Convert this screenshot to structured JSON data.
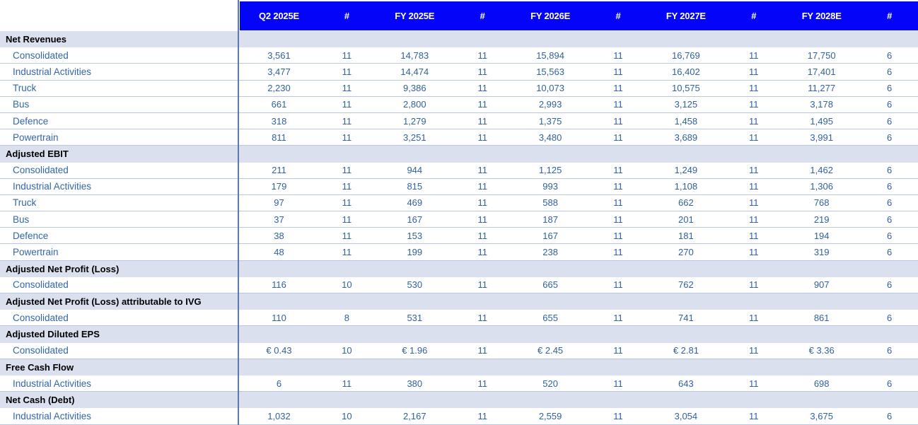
{
  "header": {
    "columns": [
      "Q2 2025E",
      "#",
      "FY 2025E",
      "#",
      "FY 2026E",
      "#",
      "FY 2027E",
      "#",
      "FY 2028E",
      "#"
    ]
  },
  "sections": [
    {
      "title": "Net Revenues",
      "rows": [
        {
          "label": "Consolidated",
          "values": [
            "3,561",
            "11",
            "14,783",
            "11",
            "15,894",
            "11",
            "16,769",
            "11",
            "17,750",
            "6"
          ]
        },
        {
          "label": "Industrial Activities",
          "values": [
            "3,477",
            "11",
            "14,474",
            "11",
            "15,563",
            "11",
            "16,402",
            "11",
            "17,401",
            "6"
          ]
        },
        {
          "label": "Truck",
          "values": [
            "2,230",
            "11",
            "9,386",
            "11",
            "10,073",
            "11",
            "10,575",
            "11",
            "11,277",
            "6"
          ]
        },
        {
          "label": "Bus",
          "values": [
            "661",
            "11",
            "2,800",
            "11",
            "2,993",
            "11",
            "3,125",
            "11",
            "3,178",
            "6"
          ]
        },
        {
          "label": "Defence",
          "values": [
            "318",
            "11",
            "1,279",
            "11",
            "1,375",
            "11",
            "1,458",
            "11",
            "1,495",
            "6"
          ]
        },
        {
          "label": "Powertrain",
          "values": [
            "811",
            "11",
            "3,251",
            "11",
            "3,480",
            "11",
            "3,689",
            "11",
            "3,991",
            "6"
          ]
        }
      ]
    },
    {
      "title": "Adjusted EBIT",
      "rows": [
        {
          "label": "Consolidated",
          "values": [
            "211",
            "11",
            "944",
            "11",
            "1,125",
            "11",
            "1,249",
            "11",
            "1,462",
            "6"
          ]
        },
        {
          "label": "Industrial Activities",
          "values": [
            "179",
            "11",
            "815",
            "11",
            "993",
            "11",
            "1,108",
            "11",
            "1,306",
            "6"
          ]
        },
        {
          "label": "Truck",
          "values": [
            "97",
            "11",
            "469",
            "11",
            "588",
            "11",
            "662",
            "11",
            "768",
            "6"
          ]
        },
        {
          "label": "Bus",
          "values": [
            "37",
            "11",
            "167",
            "11",
            "187",
            "11",
            "201",
            "11",
            "219",
            "6"
          ]
        },
        {
          "label": "Defence",
          "values": [
            "38",
            "11",
            "153",
            "11",
            "167",
            "11",
            "181",
            "11",
            "194",
            "6"
          ]
        },
        {
          "label": "Powertrain",
          "values": [
            "48",
            "11",
            "199",
            "11",
            "238",
            "11",
            "270",
            "11",
            "319",
            "6"
          ]
        }
      ]
    },
    {
      "title": "Adjusted Net Profit (Loss)",
      "rows": [
        {
          "label": "Consolidated",
          "values": [
            "116",
            "10",
            "530",
            "11",
            "665",
            "11",
            "762",
            "11",
            "907",
            "6"
          ]
        }
      ]
    },
    {
      "title": "Adjusted Net Profit (Loss) attributable to IVG",
      "rows": [
        {
          "label": "Consolidated",
          "values": [
            "110",
            "8",
            "531",
            "11",
            "655",
            "11",
            "741",
            "11",
            "861",
            "6"
          ]
        }
      ]
    },
    {
      "title": "Adjusted Diluted EPS",
      "rows": [
        {
          "label": "Consolidated",
          "values": [
            "€ 0.43",
            "10",
            "€ 1.96",
            "11",
            "€ 2.45",
            "11",
            "€ 2.81",
            "11",
            "€ 3.36",
            "6"
          ]
        }
      ]
    },
    {
      "title": "Free Cash Flow",
      "rows": [
        {
          "label": "Industrial Activities",
          "values": [
            "6",
            "11",
            "380",
            "11",
            "520",
            "11",
            "643",
            "11",
            "698",
            "6"
          ]
        }
      ]
    },
    {
      "title": "Net Cash (Debt)",
      "rows": [
        {
          "label": "Industrial Activities",
          "values": [
            "1,032",
            "10",
            "2,167",
            "11",
            "2,559",
            "11",
            "3,054",
            "11",
            "3,675",
            "6"
          ]
        }
      ]
    }
  ],
  "colors": {
    "header_bg": "#0404F8",
    "header_text": "#FFFFFF",
    "band_bg": "#DBE0EF",
    "section_text": "#000000",
    "label_text": "#3366A8",
    "value_text": "#31619E",
    "divider": "#5B79AE",
    "row_border": "#B9C6E2"
  }
}
